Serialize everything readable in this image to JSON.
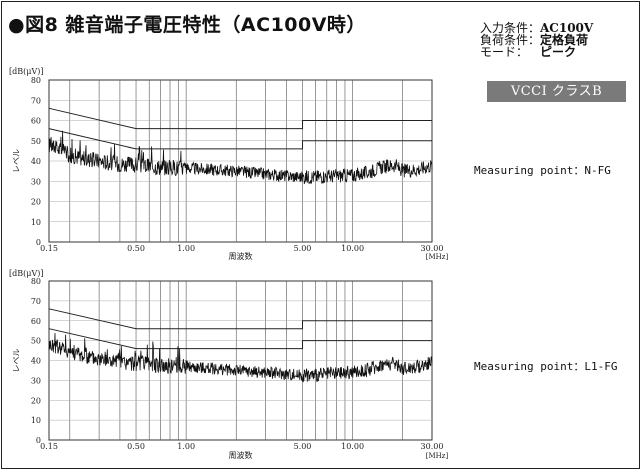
{
  "title": "●図8 雑音端子電圧特性（AC100V時）",
  "conditions": [
    {
      "key": "入力条件：",
      "value": "AC100V"
    },
    {
      "key": "負荷条件：",
      "value": "定格負荷"
    },
    {
      "key": "モード：",
      "value": "ピーク"
    }
  ],
  "badge": "VCCI クラスB",
  "chart_data": [
    {
      "type": "line",
      "ylabel_unit": "[dB(μV)]",
      "ylabel": "レベル",
      "xlabel": "周波数",
      "xunit": "[MHz]",
      "x_scale": "log",
      "xlim": [
        0.15,
        30
      ],
      "ylim": [
        0,
        80
      ],
      "x_tick_labels": [
        "0.15",
        "0.50",
        "1.00",
        "5.00",
        "10.00",
        "30.00"
      ],
      "y_tick_labels": [
        "0",
        "10",
        "20",
        "30",
        "40",
        "50",
        "60",
        "70",
        "80"
      ],
      "grid": true,
      "annotation": "Measuring point：N-FG",
      "limit_lines": [
        {
          "points": [
            [
              0.15,
              66
            ],
            [
              0.5,
              56
            ],
            [
              5,
              56
            ],
            [
              5,
              60
            ],
            [
              30,
              60
            ]
          ]
        },
        {
          "points": [
            [
              0.15,
              56
            ],
            [
              0.5,
              46
            ],
            [
              5,
              46
            ],
            [
              5,
              50
            ],
            [
              30,
              50
            ]
          ]
        }
      ],
      "series": [
        {
          "points": [
            [
              0.15,
              48
            ],
            [
              0.17,
              46
            ],
            [
              0.2,
              43
            ],
            [
              0.25,
              41
            ],
            [
              0.3,
              40
            ],
            [
              0.4,
              38.5
            ],
            [
              0.5,
              38
            ],
            [
              0.7,
              37
            ],
            [
              1,
              36.5
            ],
            [
              2,
              35
            ],
            [
              3,
              33.5
            ],
            [
              5,
              32
            ],
            [
              7,
              32.5
            ],
            [
              10,
              33
            ],
            [
              12,
              34
            ],
            [
              15,
              37
            ],
            [
              18,
              38
            ],
            [
              20,
              35
            ],
            [
              25,
              36
            ],
            [
              30,
              38
            ]
          ]
        }
      ]
    },
    {
      "type": "line",
      "ylabel_unit": "[dB(μV)]",
      "ylabel": "レベル",
      "xlabel": "周波数",
      "xunit": "[MHz]",
      "x_scale": "log",
      "xlim": [
        0.15,
        30
      ],
      "ylim": [
        0,
        80
      ],
      "x_tick_labels": [
        "0.15",
        "0.50",
        "1.00",
        "5.00",
        "10.00",
        "30.00"
      ],
      "y_tick_labels": [
        "0",
        "10",
        "20",
        "30",
        "40",
        "50",
        "60",
        "70",
        "80"
      ],
      "grid": true,
      "annotation": "Measuring point：L1-FG",
      "limit_lines": [
        {
          "points": [
            [
              0.15,
              66
            ],
            [
              0.5,
              56
            ],
            [
              5,
              56
            ],
            [
              5,
              60
            ],
            [
              30,
              60
            ]
          ]
        },
        {
          "points": [
            [
              0.15,
              56
            ],
            [
              0.5,
              46
            ],
            [
              5,
              46
            ],
            [
              5,
              50
            ],
            [
              30,
              50
            ]
          ]
        }
      ],
      "series": [
        {
          "points": [
            [
              0.15,
              48
            ],
            [
              0.17,
              47
            ],
            [
              0.2,
              45
            ],
            [
              0.25,
              42
            ],
            [
              0.3,
              41
            ],
            [
              0.4,
              39
            ],
            [
              0.5,
              38.5
            ],
            [
              0.7,
              37.5
            ],
            [
              1,
              37
            ],
            [
              2,
              35
            ],
            [
              3,
              34
            ],
            [
              5,
              32.5
            ],
            [
              7,
              33
            ],
            [
              10,
              34
            ],
            [
              12,
              35
            ],
            [
              15,
              38
            ],
            [
              18,
              38.5
            ],
            [
              20,
              36
            ],
            [
              25,
              37
            ],
            [
              30,
              39
            ]
          ]
        }
      ]
    }
  ]
}
